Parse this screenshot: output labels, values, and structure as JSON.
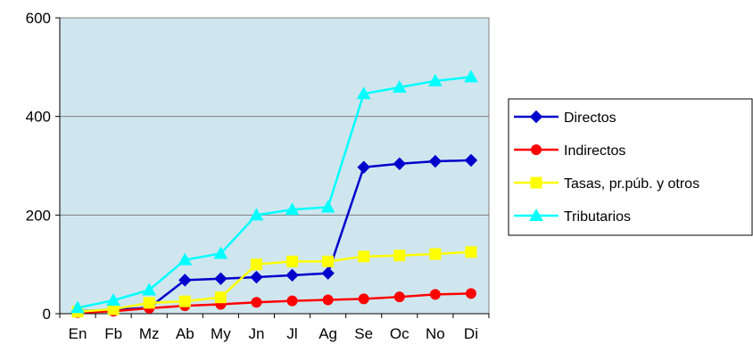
{
  "chart_data": {
    "type": "line",
    "title": "",
    "xlabel": "",
    "ylabel": "",
    "categories": [
      "En",
      "Fb",
      "Mz",
      "Ab",
      "My",
      "Jn",
      "Jl",
      "Ag",
      "Se",
      "Oc",
      "No",
      "Di"
    ],
    "ylim": [
      0,
      600
    ],
    "yticks": [
      "0",
      "200",
      "400",
      "600"
    ],
    "grid": true,
    "plot_background": "#cfe6ef",
    "legend_position": "right",
    "series": [
      {
        "name": "Directos",
        "color": "#0000cc",
        "marker": "diamond",
        "values": [
          5,
          8,
          12,
          68,
          71,
          74,
          78,
          82,
          297,
          304,
          309,
          311
        ]
      },
      {
        "name": "Indirectos",
        "color": "#ff0000",
        "marker": "circle",
        "values": [
          2,
          5,
          11,
          16,
          19,
          23,
          26,
          28,
          30,
          34,
          39,
          41
        ]
      },
      {
        "name": "Tasas, pr.púb. y otros",
        "color": "#ffff00",
        "marker": "square",
        "values": [
          4,
          9,
          22,
          25,
          33,
          100,
          106,
          106,
          116,
          118,
          121,
          125
        ]
      },
      {
        "name": "Tributarios",
        "color": "#00ffff",
        "marker": "triangle",
        "values": [
          12,
          27,
          48,
          109,
          122,
          200,
          211,
          216,
          446,
          459,
          472,
          480
        ]
      }
    ]
  }
}
